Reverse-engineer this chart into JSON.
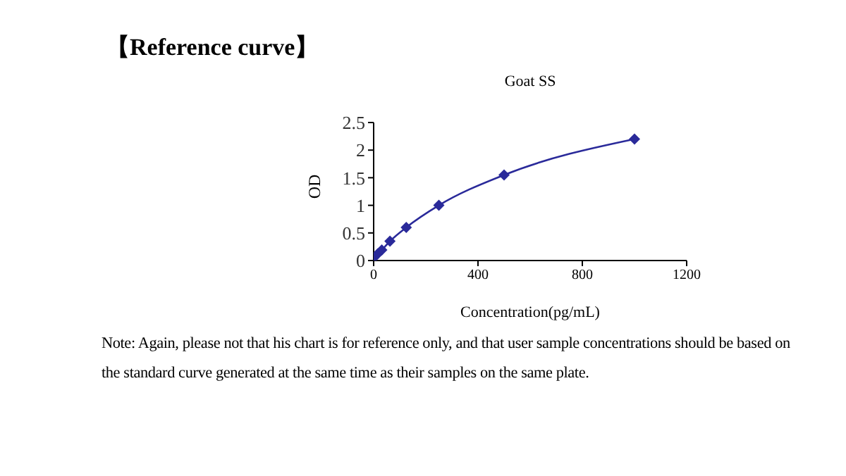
{
  "chart_data": {
    "type": "line",
    "title": "Goat SS",
    "subtitle": "【Reference curve】",
    "xlabel": "Concentration(pg/mL)",
    "ylabel": "OD",
    "x": [
      0,
      15.6,
      31.25,
      62.5,
      125,
      250,
      500,
      1000
    ],
    "series": [
      {
        "color": "#2a2a9a",
        "values": [
          0.05,
          0.12,
          0.19,
          0.35,
          0.6,
          1.0,
          1.55,
          2.2
        ]
      }
    ],
    "xlim": [
      0,
      1200
    ],
    "xticks": [
      0,
      400,
      800,
      1200
    ],
    "ylim": [
      0,
      2.5
    ],
    "yticks": [
      0,
      0.5,
      1,
      1.5,
      2,
      2.5
    ],
    "marker": "diamond",
    "line_style": "solid",
    "grid": false,
    "legend": false,
    "annotations": [
      "Note: Again, please not that his chart is for reference only, and that user sample concentrations should be based on the standard curve generated at the same time as their samples on the same plate."
    ]
  }
}
